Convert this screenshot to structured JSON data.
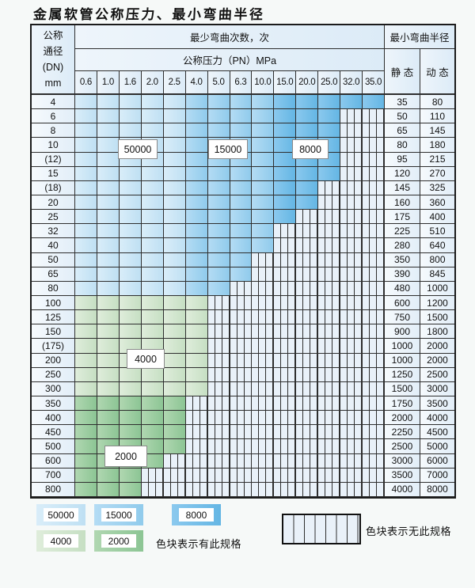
{
  "title": "金属软管公称压力、最小弯曲半径",
  "table": {
    "dn_header_lines": [
      "公称",
      "通径",
      "(DN)",
      "mm"
    ],
    "bend_cycles_header": "最少弯曲次数，次",
    "pressure_header": "公称压力（PN）MPa",
    "radius_header": "最小弯曲半径",
    "static_header": "静 态",
    "dynamic_header": "动 态",
    "pressure_columns": [
      "0.6",
      "1.0",
      "1.6",
      "2.0",
      "2.5",
      "4.0",
      "5.0",
      "6.3",
      "10.0",
      "15.0",
      "20.0",
      "25.0",
      "32.0",
      "35.0"
    ],
    "rows": [
      {
        "dn": "4",
        "band": "blue",
        "colored": 14,
        "static_r": "35",
        "dynamic_r": "80"
      },
      {
        "dn": "6",
        "band": "blue",
        "colored": 12,
        "static_r": "50",
        "dynamic_r": "110"
      },
      {
        "dn": "8",
        "band": "blue",
        "colored": 12,
        "static_r": "65",
        "dynamic_r": "145"
      },
      {
        "dn": "10",
        "band": "blue",
        "colored": 12,
        "static_r": "80",
        "dynamic_r": "180"
      },
      {
        "dn": "(12)",
        "band": "blue",
        "colored": 12,
        "static_r": "95",
        "dynamic_r": "215"
      },
      {
        "dn": "15",
        "band": "blue",
        "colored": 12,
        "static_r": "120",
        "dynamic_r": "270"
      },
      {
        "dn": "(18)",
        "band": "blue",
        "colored": 11,
        "static_r": "145",
        "dynamic_r": "325"
      },
      {
        "dn": "20",
        "band": "blue",
        "colored": 11,
        "static_r": "160",
        "dynamic_r": "360"
      },
      {
        "dn": "25",
        "band": "blue",
        "colored": 10,
        "static_r": "175",
        "dynamic_r": "400"
      },
      {
        "dn": "32",
        "band": "blue",
        "colored": 9,
        "static_r": "225",
        "dynamic_r": "510"
      },
      {
        "dn": "40",
        "band": "blue",
        "colored": 9,
        "static_r": "280",
        "dynamic_r": "640"
      },
      {
        "dn": "50",
        "band": "blue",
        "colored": 8,
        "static_r": "350",
        "dynamic_r": "800"
      },
      {
        "dn": "65",
        "band": "blue",
        "colored": 8,
        "static_r": "390",
        "dynamic_r": "845"
      },
      {
        "dn": "80",
        "band": "blue",
        "colored": 7,
        "static_r": "480",
        "dynamic_r": "1000"
      },
      {
        "dn": "100",
        "band": "g4000",
        "colored": 6,
        "static_r": "600",
        "dynamic_r": "1200"
      },
      {
        "dn": "125",
        "band": "g4000",
        "colored": 6,
        "static_r": "750",
        "dynamic_r": "1500"
      },
      {
        "dn": "150",
        "band": "g4000",
        "colored": 6,
        "static_r": "900",
        "dynamic_r": "1800"
      },
      {
        "dn": "(175)",
        "band": "g4000",
        "colored": 6,
        "static_r": "1000",
        "dynamic_r": "2000"
      },
      {
        "dn": "200",
        "band": "g4000",
        "colored": 6,
        "static_r": "1000",
        "dynamic_r": "2000"
      },
      {
        "dn": "250",
        "band": "g4000",
        "colored": 6,
        "static_r": "1250",
        "dynamic_r": "2500"
      },
      {
        "dn": "300",
        "band": "g4000",
        "colored": 6,
        "static_r": "1500",
        "dynamic_r": "3000"
      },
      {
        "dn": "350",
        "band": "g2000",
        "colored": 5,
        "static_r": "1750",
        "dynamic_r": "3500"
      },
      {
        "dn": "400",
        "band": "g2000",
        "colored": 5,
        "static_r": "2000",
        "dynamic_r": "4000"
      },
      {
        "dn": "450",
        "band": "g2000",
        "colored": 5,
        "static_r": "2250",
        "dynamic_r": "4500"
      },
      {
        "dn": "500",
        "band": "g2000",
        "colored": 5,
        "static_r": "2500",
        "dynamic_r": "5000"
      },
      {
        "dn": "600",
        "band": "g2000",
        "colored": 4,
        "static_r": "3000",
        "dynamic_r": "6000"
      },
      {
        "dn": "700",
        "band": "g2000",
        "colored": 3,
        "static_r": "3500",
        "dynamic_r": "7000"
      },
      {
        "dn": "800",
        "band": "g2000",
        "colored": 3,
        "static_r": "4000",
        "dynamic_r": "8000"
      }
    ],
    "blue_zone_breaks": {
      "light_cols_end": 5,
      "medium_cols_end": 9
    }
  },
  "zone_labels": {
    "z50000": "50000",
    "z15000": "15000",
    "z8000": "8000",
    "z4000": "4000",
    "z2000": "2000"
  },
  "zone_colors": {
    "z50000": [
      "#d9edf9",
      "#bfe0f3"
    ],
    "z15000": [
      "#b4dcf4",
      "#90cbec"
    ],
    "z8000": [
      "#8bc9ee",
      "#64b6e4"
    ],
    "z4000": [
      "#dfeddb",
      "#c6dfc3"
    ],
    "z2000": [
      "#b0d7b1",
      "#8cc594"
    ]
  },
  "legend": {
    "has_spec_text": "色块表示有此规格",
    "no_spec_text": "色块表示无此规格"
  }
}
